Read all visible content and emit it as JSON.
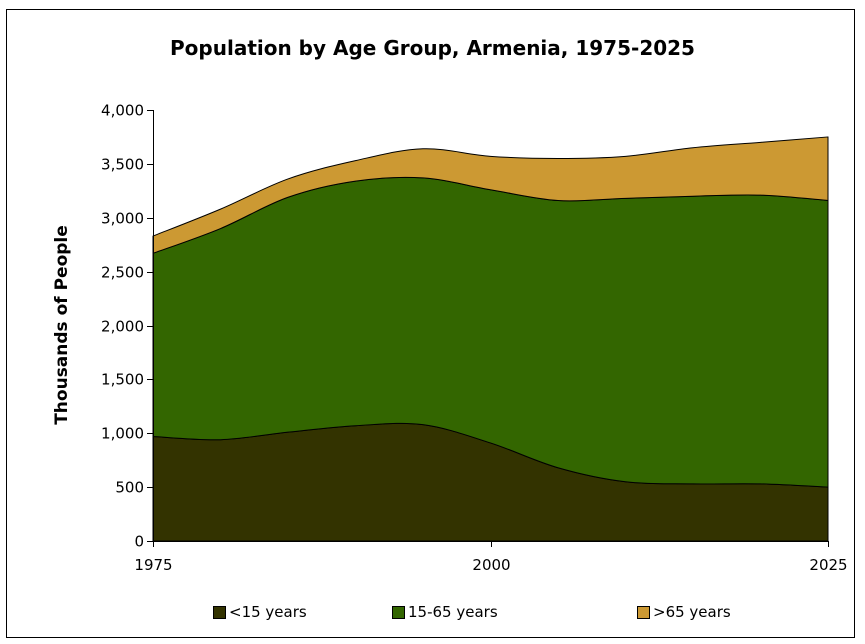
{
  "chart_data": {
    "type": "area",
    "stacked": true,
    "title": "Population by Age Group, Armenia, 1975-2025",
    "xlabel": "",
    "ylabel": "Thousands of People",
    "x": [
      1975,
      1980,
      1985,
      1990,
      1995,
      2000,
      2005,
      2010,
      2015,
      2020,
      2025
    ],
    "x_ticks": [
      "1975",
      "2000",
      "2025"
    ],
    "xlim": [
      1975,
      2025
    ],
    "ylim": [
      0,
      4000
    ],
    "y_ticks": [
      "0",
      "500",
      "1,000",
      "1,500",
      "2,000",
      "2,500",
      "3,000",
      "3,500",
      "4,000"
    ],
    "grid": false,
    "legend_position": "bottom",
    "series": [
      {
        "name": "<15 years",
        "color": "#333300",
        "values": [
          970,
          940,
          1010,
          1070,
          1080,
          910,
          680,
          550,
          530,
          530,
          500
        ]
      },
      {
        "name": "15-65 years",
        "color": "#336600",
        "values": [
          1700,
          1960,
          2180,
          2270,
          2290,
          2350,
          2480,
          2630,
          2670,
          2680,
          2660
        ]
      },
      {
        "name": ">65 years",
        "color": "#cc9933",
        "values": [
          160,
          180,
          170,
          190,
          270,
          310,
          390,
          390,
          450,
          490,
          590
        ]
      }
    ]
  }
}
